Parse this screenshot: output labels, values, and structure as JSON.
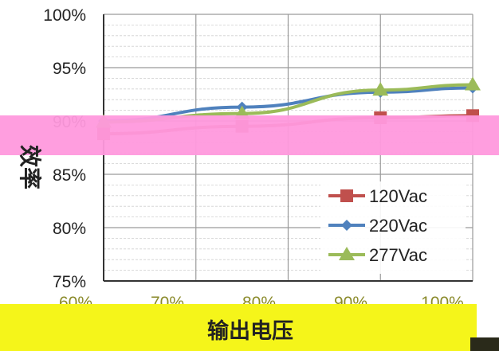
{
  "chart_data": {
    "type": "line",
    "title": "",
    "xlabel": "输出电压",
    "ylabel": "效率",
    "x_ticks": [
      "60%",
      "70%",
      "80%",
      "90%",
      "100%"
    ],
    "x": [
      60,
      75,
      90,
      100
    ],
    "xlim": [
      60,
      100
    ],
    "y_ticks": [
      "75%",
      "80%",
      "85%",
      "90%",
      "95%",
      "100%"
    ],
    "ylim": [
      75,
      100
    ],
    "grid": true,
    "legend_position": "bottom-right",
    "series": [
      {
        "name": "120Vac",
        "color": "#c0504d",
        "marker": "square",
        "values": [
          88.8,
          89.5,
          90.3,
          90.5
        ]
      },
      {
        "name": "220Vac",
        "color": "#4f81bd",
        "marker": "diamond",
        "values": [
          90.0,
          91.3,
          92.7,
          93.1
        ]
      },
      {
        "name": "277Vac",
        "color": "#9bbb59",
        "marker": "triangle",
        "values": [
          89.9,
          90.7,
          92.9,
          93.4
        ]
      }
    ]
  },
  "overlays": {
    "band_color": "#ff99dd",
    "bottom_band_color": "#f5f51a"
  }
}
